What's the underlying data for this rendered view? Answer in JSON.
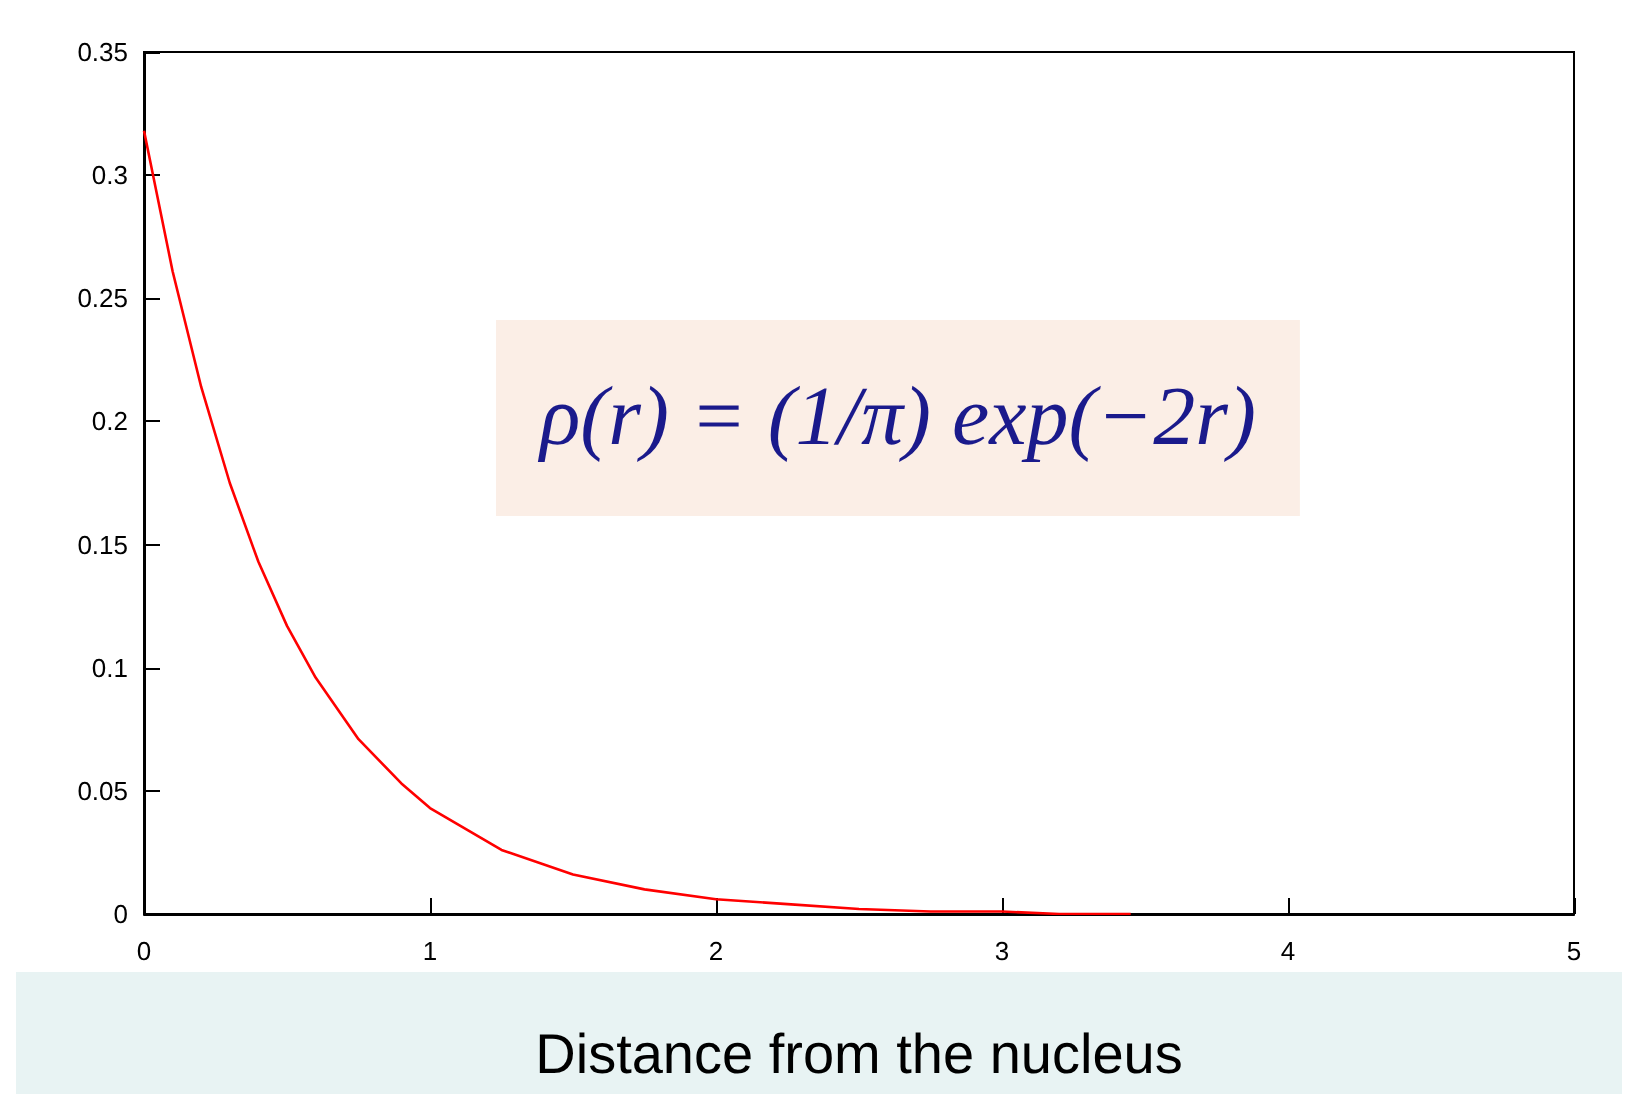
{
  "chart_data": {
    "type": "line",
    "xlabel": "Distance from the nucleus",
    "annotations": [
      "ρ(r) = (1/π) exp(−2r)"
    ],
    "series": [
      {
        "color": "#ff0000",
        "x": [
          0,
          0.1,
          0.2,
          0.3,
          0.4,
          0.5,
          0.6,
          0.75,
          0.9,
          1,
          1.25,
          1.5,
          1.75,
          2,
          2.25,
          2.5,
          2.75,
          3,
          3.2,
          3.45
        ],
        "values": [
          0.318,
          0.261,
          0.214,
          0.175,
          0.143,
          0.117,
          0.096,
          0.071,
          0.053,
          0.043,
          0.026,
          0.016,
          0.01,
          0.006,
          0.004,
          0.002,
          0.001,
          0.001,
          0,
          0
        ]
      }
    ],
    "xlim": [
      0,
      5
    ],
    "xticks": [
      0,
      1,
      2,
      3,
      4,
      5
    ],
    "ylim": [
      0,
      0.35
    ],
    "yticks": [
      0,
      0.05,
      0.1,
      0.15,
      0.2,
      0.25,
      0.3,
      0.35
    ],
    "grid": false,
    "marker": "none",
    "line_style": "solid"
  }
}
